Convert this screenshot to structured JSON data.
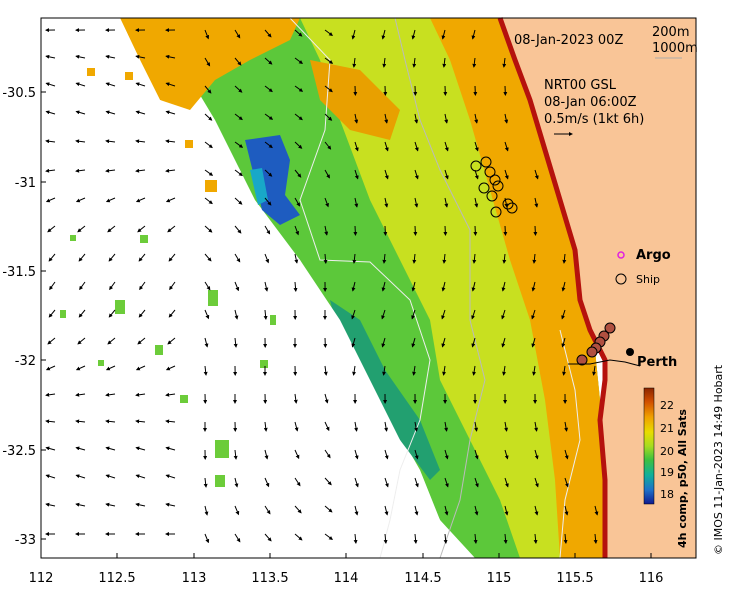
{
  "map": {
    "datetime_title": "08-Jan-2023 00Z",
    "depth_contours": [
      "200m",
      "1000m"
    ],
    "currents_title": [
      "NRT00 GSL",
      "08-Jan 06:00Z",
      "0.5m/s (1kt 6h)"
    ],
    "legend": {
      "argo": "Argo",
      "ship": "Ship"
    },
    "city": "Perth",
    "x_ticks": [
      "112",
      "112.5",
      "113",
      "113.5",
      "114",
      "114.5",
      "115",
      "115.5",
      "116"
    ],
    "y_ticks": [
      "-30.5",
      "-31",
      "-31.5",
      "-32",
      "-32.5",
      "-33"
    ],
    "colorbar": {
      "label": "4h comp, p50, All Sats",
      "ticks": [
        "22",
        "21",
        "20",
        "19",
        "18"
      ],
      "colors": [
        "#8b2500",
        "#cc4a00",
        "#e88a00",
        "#f0b400",
        "#e5e000",
        "#b8e010",
        "#6ad23a",
        "#1fb45a",
        "#10a8a0",
        "#1f78c8",
        "#1428a0"
      ]
    },
    "credit": "© IMOS 11-Jan-2023 14:49 Hobart",
    "colors": {
      "land": "#f9c597",
      "coast": "#b5120d",
      "warm": "#f0a000",
      "cool": "#1fa84a"
    }
  }
}
